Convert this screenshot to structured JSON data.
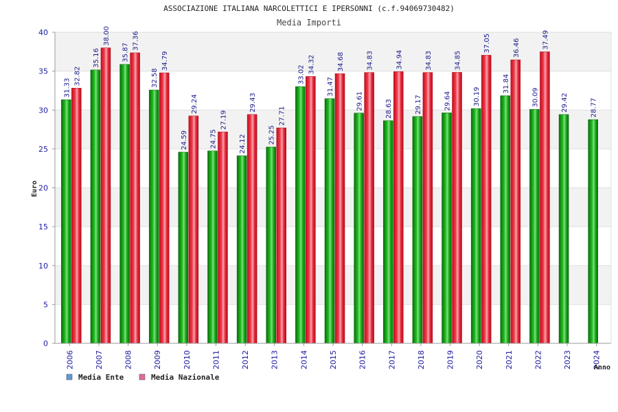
{
  "chart_data": {
    "type": "bar",
    "title": "ASSOCIAZIONE ITALIANA NARCOLETTICI E IPERSONNI (c.f.94069730482)",
    "subtitle": "Media Importi",
    "xlabel": "Anno",
    "ylabel": "Euro",
    "ylim": [
      0,
      40
    ],
    "yticks": [
      0,
      5,
      10,
      15,
      20,
      25,
      30,
      35,
      40
    ],
    "grid": true,
    "legend_position": "bottom-left",
    "categories": [
      "2006",
      "2007",
      "2008",
      "2009",
      "2010",
      "2011",
      "2012",
      "2013",
      "2014",
      "2015",
      "2016",
      "2017",
      "2018",
      "2019",
      "2020",
      "2021",
      "2022",
      "2023",
      "2024"
    ],
    "series": [
      {
        "name": "Media Ente",
        "color": "#1fae1f",
        "legend_color": "#5b9bd5",
        "values": [
          31.33,
          35.16,
          35.87,
          32.58,
          24.59,
          24.75,
          24.12,
          25.25,
          33.02,
          31.47,
          29.61,
          28.63,
          29.17,
          29.64,
          30.19,
          31.84,
          30.09,
          29.42,
          28.77
        ],
        "labels": [
          "31.33",
          "35.16",
          "35.87",
          "32.58",
          "24.59",
          "24.75",
          "24.12",
          "25.25",
          "33.02",
          "31.47",
          "29.61",
          "28.63",
          "29.17",
          "29.64",
          "30.19",
          "31.84",
          "30.09",
          "29.42",
          "28.77"
        ]
      },
      {
        "name": "Media Nazionale",
        "color": "#e8253a",
        "legend_color": "#e06a9a",
        "values": [
          32.82,
          38.0,
          37.36,
          34.79,
          29.24,
          27.19,
          29.43,
          27.71,
          34.32,
          34.68,
          34.83,
          34.94,
          34.83,
          34.85,
          37.05,
          36.46,
          37.49,
          null,
          null
        ],
        "labels": [
          "32.82",
          "38.00",
          "37.36",
          "34.79",
          "29.24",
          "27.19",
          "29.43",
          "27.71",
          "34.32",
          "34.68",
          "34.83",
          "34.94",
          "34.83",
          "34.85",
          "37.05",
          "36.46",
          "37.49",
          null,
          null
        ]
      }
    ]
  }
}
